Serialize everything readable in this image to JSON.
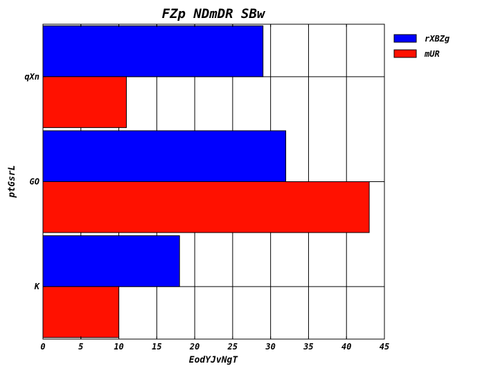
{
  "chart_data": {
    "type": "bar",
    "orientation": "horizontal",
    "title": "FZp NDmDR SBw",
    "xlabel": "EodYJvNgT",
    "ylabel": "ptGsrL",
    "categories": [
      "qXn",
      "GO",
      "K"
    ],
    "series": [
      {
        "name": "rXBZg",
        "color": "#0000ff",
        "values": [
          29,
          32,
          18
        ]
      },
      {
        "name": "mUR",
        "color": "#ff1100",
        "values": [
          11,
          43,
          10
        ]
      }
    ],
    "xlim": [
      0,
      45
    ],
    "xticks": [
      0,
      5,
      10,
      15,
      20,
      25,
      30,
      35,
      40,
      45
    ],
    "grid": true,
    "legend_position": "top-right"
  }
}
